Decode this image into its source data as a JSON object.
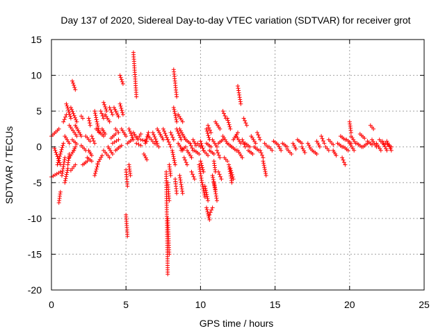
{
  "chart_data": {
    "type": "scatter",
    "title": "Day 137 of 2020, Sidereal Day-to-day VTEC variation (SDTVAR) for receiver grot",
    "xlabel": "GPS time / hours",
    "ylabel": "SDTVAR / TECUs",
    "xlim": [
      0,
      25
    ],
    "ylim": [
      -20,
      15
    ],
    "xticks": [
      0,
      5,
      10,
      15,
      20,
      25
    ],
    "yticks": [
      -20,
      -15,
      -10,
      -5,
      0,
      5,
      10,
      15
    ],
    "grid": true,
    "legend": "none",
    "marker": "+",
    "series_color": "#ff0000",
    "series": [
      {
        "name": "SDTVAR",
        "segments": [
          {
            "x0": 0.0,
            "y0": 1.5,
            "x1": 0.5,
            "y1": 2.5
          },
          {
            "x0": 0.0,
            "y0": -4.2,
            "x1": 0.6,
            "y1": -3.5
          },
          {
            "x0": 0.2,
            "y0": -0.2,
            "x1": 0.6,
            "y1": -2.5
          },
          {
            "x0": 0.4,
            "y0": -2.5,
            "x1": 0.8,
            "y1": 0.5
          },
          {
            "x0": 0.5,
            "y0": -7.8,
            "x1": 0.6,
            "y1": -6.3
          },
          {
            "x0": 0.7,
            "y0": -4.0,
            "x1": 0.9,
            "y1": -1.5
          },
          {
            "x0": 0.8,
            "y0": 3.5,
            "x1": 1.0,
            "y1": 4.5
          },
          {
            "x0": 0.9,
            "y0": 1.5,
            "x1": 1.2,
            "y1": 0.5
          },
          {
            "x0": 0.9,
            "y0": -5.0,
            "x1": 1.1,
            "y1": -3.0
          },
          {
            "x0": 1.0,
            "y0": 6.0,
            "x1": 1.3,
            "y1": 4.0
          },
          {
            "x0": 1.1,
            "y0": -2.5,
            "x1": 1.2,
            "y1": -1.0
          },
          {
            "x0": 1.2,
            "y0": 3.0,
            "x1": 1.7,
            "y1": 1.5
          },
          {
            "x0": 1.2,
            "y0": -1.5,
            "x1": 1.5,
            "y1": -0.5
          },
          {
            "x0": 1.3,
            "y0": -3.3,
            "x1": 1.6,
            "y1": -2.5
          },
          {
            "x0": 1.4,
            "y0": 9.2,
            "x1": 1.6,
            "y1": 8.0
          },
          {
            "x0": 1.3,
            "y0": 5.5,
            "x1": 1.7,
            "y1": 3.5
          },
          {
            "x0": 1.4,
            "y0": 1.0,
            "x1": 1.7,
            "y1": 0.4
          },
          {
            "x0": 1.5,
            "y0": -0.5,
            "x1": 1.6,
            "y1": 0.0
          },
          {
            "x0": 1.6,
            "y0": 3.0,
            "x1": 2.0,
            "y1": 1.5
          },
          {
            "x0": 2.0,
            "y0": 4.3,
            "x1": 2.1,
            "y1": 4.0
          },
          {
            "x0": 2.0,
            "y0": 0.2,
            "x1": 2.3,
            "y1": -0.5
          },
          {
            "x0": 2.1,
            "y0": -2.5,
            "x1": 2.4,
            "y1": -2.0
          },
          {
            "x0": 2.3,
            "y0": 1.5,
            "x1": 2.6,
            "y1": 0.8
          },
          {
            "x0": 2.5,
            "y0": 4.0,
            "x1": 2.6,
            "y1": 3.0
          },
          {
            "x0": 2.4,
            "y0": -1.5,
            "x1": 2.7,
            "y1": -2.0
          },
          {
            "x0": 2.5,
            "y0": -0.5,
            "x1": 2.7,
            "y1": -1.2
          },
          {
            "x0": 2.7,
            "y0": 1.5,
            "x1": 2.9,
            "y1": 0.5
          },
          {
            "x0": 2.9,
            "y0": 5.0,
            "x1": 3.2,
            "y1": 2.0
          },
          {
            "x0": 2.9,
            "y0": -4.0,
            "x1": 3.1,
            "y1": -2.5
          },
          {
            "x0": 3.0,
            "y0": 2.5,
            "x1": 3.5,
            "y1": 1.5
          },
          {
            "x0": 3.1,
            "y0": -2.3,
            "x1": 3.4,
            "y1": -1.2
          },
          {
            "x0": 3.3,
            "y0": 5.0,
            "x1": 3.5,
            "y1": 4.0
          },
          {
            "x0": 3.4,
            "y0": 2.5,
            "x1": 3.6,
            "y1": 1.8
          },
          {
            "x0": 3.5,
            "y0": 6.2,
            "x1": 3.7,
            "y1": 5.0
          },
          {
            "x0": 3.5,
            "y0": -0.5,
            "x1": 3.9,
            "y1": -1.5
          },
          {
            "x0": 3.6,
            "y0": 4.5,
            "x1": 3.9,
            "y1": 3.5
          },
          {
            "x0": 3.8,
            "y0": 0.0,
            "x1": 4.1,
            "y1": -1.0
          },
          {
            "x0": 3.9,
            "y0": 5.5,
            "x1": 4.1,
            "y1": 4.5
          },
          {
            "x0": 4.0,
            "y0": 1.2,
            "x1": 4.3,
            "y1": 1.8
          },
          {
            "x0": 4.1,
            "y0": 0.5,
            "x1": 4.5,
            "y1": 1.0
          },
          {
            "x0": 4.2,
            "y0": 5.5,
            "x1": 4.5,
            "y1": 4.2
          },
          {
            "x0": 4.3,
            "y0": 2.5,
            "x1": 4.5,
            "y1": 2.0
          },
          {
            "x0": 4.3,
            "y0": -0.5,
            "x1": 4.7,
            "y1": 0.2
          },
          {
            "x0": 4.6,
            "y0": 10.0,
            "x1": 4.8,
            "y1": 8.8
          },
          {
            "x0": 4.6,
            "y0": 6.0,
            "x1": 4.8,
            "y1": 4.5
          },
          {
            "x0": 4.7,
            "y0": 2.5,
            "x1": 5.0,
            "y1": 1.5
          },
          {
            "x0": 5.0,
            "y0": -3.2,
            "x1": 5.1,
            "y1": -5.5
          },
          {
            "x0": 5.0,
            "y0": -9.5,
            "x1": 5.1,
            "y1": -12.5
          },
          {
            "x0": 5.2,
            "y0": 2.5,
            "x1": 5.5,
            "y1": 1.0
          },
          {
            "x0": 5.1,
            "y0": 0.5,
            "x1": 5.4,
            "y1": 1.0
          },
          {
            "x0": 5.2,
            "y0": -2.5,
            "x1": 5.3,
            "y1": -4.0
          },
          {
            "x0": 5.5,
            "y0": 13.2,
            "x1": 5.7,
            "y1": 7.0
          },
          {
            "x0": 5.5,
            "y0": 2.0,
            "x1": 5.8,
            "y1": 1.0
          },
          {
            "x0": 5.7,
            "y0": 0.5,
            "x1": 6.0,
            "y1": 0.2
          },
          {
            "x0": 5.8,
            "y0": 1.2,
            "x1": 6.0,
            "y1": 1.8
          },
          {
            "x0": 6.0,
            "y0": 1.0,
            "x1": 6.4,
            "y1": 0.8
          },
          {
            "x0": 6.2,
            "y0": -1.0,
            "x1": 6.4,
            "y1": -1.8
          },
          {
            "x0": 6.3,
            "y0": 0.5,
            "x1": 6.5,
            "y1": 2.0
          },
          {
            "x0": 6.5,
            "y0": 1.5,
            "x1": 6.9,
            "y1": 0.5
          },
          {
            "x0": 6.8,
            "y0": 2.0,
            "x1": 7.1,
            "y1": 0.5
          },
          {
            "x0": 7.0,
            "y0": 0.5,
            "x1": 7.2,
            "y1": 0.0
          },
          {
            "x0": 7.1,
            "y0": 2.5,
            "x1": 7.5,
            "y1": 1.0
          },
          {
            "x0": 7.5,
            "y0": 2.5,
            "x1": 7.8,
            "y1": 1.0
          },
          {
            "x0": 7.7,
            "y0": -3.5,
            "x1": 7.8,
            "y1": -17.8
          },
          {
            "x0": 7.8,
            "y0": -10.0,
            "x1": 7.9,
            "y1": -15.0
          },
          {
            "x0": 7.8,
            "y0": -5.0,
            "x1": 7.9,
            "y1": -7.5
          },
          {
            "x0": 7.9,
            "y0": -2.5,
            "x1": 8.0,
            "y1": -4.0
          },
          {
            "x0": 7.8,
            "y0": 1.0,
            "x1": 8.0,
            "y1": 0.0
          },
          {
            "x0": 8.0,
            "y0": 2.0,
            "x1": 8.2,
            "y1": 1.0
          },
          {
            "x0": 8.1,
            "y0": -0.5,
            "x1": 8.3,
            "y1": -2.5
          },
          {
            "x0": 8.2,
            "y0": 10.8,
            "x1": 8.4,
            "y1": 7.0
          },
          {
            "x0": 8.2,
            "y0": 5.5,
            "x1": 8.4,
            "y1": 3.5
          },
          {
            "x0": 8.3,
            "y0": -4.5,
            "x1": 8.4,
            "y1": -6.5
          },
          {
            "x0": 8.4,
            "y0": 2.5,
            "x1": 8.7,
            "y1": 1.0
          },
          {
            "x0": 8.5,
            "y0": 4.5,
            "x1": 8.8,
            "y1": 3.5
          },
          {
            "x0": 8.5,
            "y0": 0.5,
            "x1": 8.8,
            "y1": -0.5
          },
          {
            "x0": 8.6,
            "y0": 2.5,
            "x1": 9.0,
            "y1": 1.0
          },
          {
            "x0": 8.6,
            "y0": -4.0,
            "x1": 8.8,
            "y1": -6.5
          },
          {
            "x0": 8.7,
            "y0": -0.5,
            "x1": 9.0,
            "y1": 0.0
          },
          {
            "x0": 8.9,
            "y0": -1.5,
            "x1": 9.1,
            "y1": -2.5
          },
          {
            "x0": 9.0,
            "y0": 1.0,
            "x1": 9.3,
            "y1": 0.5
          },
          {
            "x0": 9.1,
            "y0": -0.5,
            "x1": 9.4,
            "y1": -1.5
          },
          {
            "x0": 9.3,
            "y0": 0.5,
            "x1": 9.5,
            "y1": -0.5
          },
          {
            "x0": 9.4,
            "y0": -3.5,
            "x1": 9.6,
            "y1": -4.5
          },
          {
            "x0": 9.5,
            "y0": 1.0,
            "x1": 9.7,
            "y1": 0.2
          },
          {
            "x0": 9.6,
            "y0": -0.5,
            "x1": 9.9,
            "y1": -1.0
          },
          {
            "x0": 9.8,
            "y0": 0.5,
            "x1": 10.0,
            "y1": 0.0
          },
          {
            "x0": 9.9,
            "y0": -2.5,
            "x1": 10.1,
            "y1": -5.0
          },
          {
            "x0": 10.0,
            "y0": -2.0,
            "x1": 10.2,
            "y1": -3.5
          },
          {
            "x0": 10.0,
            "y0": 0.8,
            "x1": 10.2,
            "y1": -0.5
          },
          {
            "x0": 10.1,
            "y0": -5.0,
            "x1": 10.3,
            "y1": -7.0
          },
          {
            "x0": 10.2,
            "y0": -0.5,
            "x1": 10.5,
            "y1": -1.2
          },
          {
            "x0": 10.3,
            "y0": -5.5,
            "x1": 10.5,
            "y1": -7.5
          },
          {
            "x0": 10.4,
            "y0": 2.5,
            "x1": 10.6,
            "y1": 1.0
          },
          {
            "x0": 10.4,
            "y0": -8.5,
            "x1": 10.6,
            "y1": -10.2
          },
          {
            "x0": 10.4,
            "y0": 0.5,
            "x1": 10.7,
            "y1": 0.0
          },
          {
            "x0": 10.5,
            "y0": 3.0,
            "x1": 10.7,
            "y1": 2.0
          },
          {
            "x0": 10.6,
            "y0": -0.5,
            "x1": 10.9,
            "y1": -1.0
          },
          {
            "x0": 10.6,
            "y0": -9.5,
            "x1": 10.8,
            "y1": -8.5
          },
          {
            "x0": 10.8,
            "y0": 1.0,
            "x1": 11.1,
            "y1": 0.0
          },
          {
            "x0": 10.9,
            "y0": -2.0,
            "x1": 11.0,
            "y1": -3.5
          },
          {
            "x0": 10.8,
            "y0": -4.0,
            "x1": 11.0,
            "y1": -6.0
          },
          {
            "x0": 10.9,
            "y0": -5.0,
            "x1": 11.1,
            "y1": -7.5
          },
          {
            "x0": 11.0,
            "y0": 3.5,
            "x1": 11.3,
            "y1": 2.5
          },
          {
            "x0": 11.1,
            "y0": -0.5,
            "x1": 11.3,
            "y1": -1.5
          },
          {
            "x0": 11.2,
            "y0": -3.5,
            "x1": 11.4,
            "y1": -4.5
          },
          {
            "x0": 11.2,
            "y0": 0.5,
            "x1": 11.5,
            "y1": 1.0
          },
          {
            "x0": 11.5,
            "y0": 5.0,
            "x1": 11.7,
            "y1": 4.0
          },
          {
            "x0": 11.5,
            "y0": 1.5,
            "x1": 11.8,
            "y1": 0.5
          },
          {
            "x0": 11.6,
            "y0": -1.5,
            "x1": 11.8,
            "y1": -2.0
          },
          {
            "x0": 11.8,
            "y0": 4.0,
            "x1": 12.0,
            "y1": 2.5
          },
          {
            "x0": 11.8,
            "y0": 0.5,
            "x1": 12.1,
            "y1": 0.0
          },
          {
            "x0": 11.9,
            "y0": -2.5,
            "x1": 12.1,
            "y1": -5.0
          },
          {
            "x0": 12.0,
            "y0": -3.0,
            "x1": 12.2,
            "y1": -4.5
          },
          {
            "x0": 12.1,
            "y0": 0.0,
            "x1": 12.4,
            "y1": -0.5
          },
          {
            "x0": 12.2,
            "y0": 1.0,
            "x1": 12.5,
            "y1": 2.0
          },
          {
            "x0": 12.5,
            "y0": 8.5,
            "x1": 12.7,
            "y1": 6.0
          },
          {
            "x0": 12.4,
            "y0": 1.5,
            "x1": 12.7,
            "y1": 0.5
          },
          {
            "x0": 12.5,
            "y0": -0.5,
            "x1": 12.8,
            "y1": -1.5
          },
          {
            "x0": 12.8,
            "y0": 1.0,
            "x1": 13.0,
            "y1": 0.0
          },
          {
            "x0": 12.9,
            "y0": 4.0,
            "x1": 13.1,
            "y1": 3.0
          },
          {
            "x0": 13.0,
            "y0": 0.5,
            "x1": 13.3,
            "y1": 0.0
          },
          {
            "x0": 13.2,
            "y0": -0.5,
            "x1": 13.5,
            "y1": -1.0
          },
          {
            "x0": 13.4,
            "y0": 1.5,
            "x1": 13.7,
            "y1": 0.5
          },
          {
            "x0": 13.6,
            "y0": 0.0,
            "x1": 13.9,
            "y1": -0.5
          },
          {
            "x0": 13.8,
            "y0": 2.0,
            "x1": 14.0,
            "y1": 1.0
          },
          {
            "x0": 14.0,
            "y0": -0.5,
            "x1": 14.2,
            "y1": -1.5
          },
          {
            "x0": 14.2,
            "y0": -2.0,
            "x1": 14.4,
            "y1": -4.0
          },
          {
            "x0": 14.3,
            "y0": 0.5,
            "x1": 14.5,
            "y1": 0.0
          },
          {
            "x0": 14.6,
            "y0": 0.0,
            "x1": 14.8,
            "y1": -0.5
          },
          {
            "x0": 14.9,
            "y0": 0.8,
            "x1": 15.1,
            "y1": 0.5
          },
          {
            "x0": 15.2,
            "y0": 0.3,
            "x1": 15.4,
            "y1": -0.5
          },
          {
            "x0": 15.5,
            "y0": 0.5,
            "x1": 15.8,
            "y1": 0.0
          },
          {
            "x0": 15.8,
            "y0": -0.3,
            "x1": 16.1,
            "y1": -1.0
          },
          {
            "x0": 16.2,
            "y0": 0.5,
            "x1": 16.4,
            "y1": -0.3
          },
          {
            "x0": 16.5,
            "y0": 1.0,
            "x1": 16.8,
            "y1": 0.5
          },
          {
            "x0": 16.8,
            "y0": 0.0,
            "x1": 17.0,
            "y1": -0.8
          },
          {
            "x0": 17.2,
            "y0": 0.5,
            "x1": 17.4,
            "y1": -0.3
          },
          {
            "x0": 17.5,
            "y0": -0.5,
            "x1": 17.8,
            "y1": -1.0
          },
          {
            "x0": 17.8,
            "y0": 0.8,
            "x1": 18.0,
            "y1": 0.0
          },
          {
            "x0": 18.1,
            "y0": 1.5,
            "x1": 18.3,
            "y1": 0.5
          },
          {
            "x0": 18.4,
            "y0": 0.0,
            "x1": 18.6,
            "y1": -0.5
          },
          {
            "x0": 18.6,
            "y0": 1.0,
            "x1": 18.9,
            "y1": 0.3
          },
          {
            "x0": 18.9,
            "y0": -0.5,
            "x1": 19.1,
            "y1": -1.2
          },
          {
            "x0": 19.2,
            "y0": 0.5,
            "x1": 19.5,
            "y1": 0.0
          },
          {
            "x0": 19.4,
            "y0": 1.5,
            "x1": 19.7,
            "y1": 1.0
          },
          {
            "x0": 19.5,
            "y0": -1.5,
            "x1": 19.7,
            "y1": -2.5
          },
          {
            "x0": 19.6,
            "y0": 0.0,
            "x1": 19.9,
            "y1": -0.5
          },
          {
            "x0": 19.8,
            "y0": 1.0,
            "x1": 20.1,
            "y1": 0.5
          },
          {
            "x0": 20.0,
            "y0": 3.5,
            "x1": 20.1,
            "y1": 2.0
          },
          {
            "x0": 20.0,
            "y0": 0.5,
            "x1": 20.3,
            "y1": -0.5
          },
          {
            "x0": 20.1,
            "y0": 1.5,
            "x1": 20.4,
            "y1": 0.5
          },
          {
            "x0": 20.5,
            "y0": 0.5,
            "x1": 20.8,
            "y1": 0.0
          },
          {
            "x0": 20.7,
            "y0": 1.8,
            "x1": 21.0,
            "y1": 1.2
          },
          {
            "x0": 20.9,
            "y0": 0.0,
            "x1": 21.2,
            "y1": 0.5
          },
          {
            "x0": 21.2,
            "y0": 0.8,
            "x1": 21.5,
            "y1": 0.3
          },
          {
            "x0": 21.4,
            "y0": 3.0,
            "x1": 21.6,
            "y1": 2.5
          },
          {
            "x0": 21.5,
            "y0": 1.0,
            "x1": 21.8,
            "y1": 0.0
          },
          {
            "x0": 21.8,
            "y0": 0.5,
            "x1": 22.1,
            "y1": -0.5
          },
          {
            "x0": 22.0,
            "y0": 1.0,
            "x1": 22.3,
            "y1": 0.3
          },
          {
            "x0": 22.2,
            "y0": 0.8,
            "x1": 22.5,
            "y1": -0.5
          },
          {
            "x0": 22.4,
            "y0": 0.5,
            "x1": 22.8,
            "y1": 0.0
          },
          {
            "x0": 22.5,
            "y0": 0.8,
            "x1": 22.8,
            "y1": -0.5
          }
        ]
      }
    ]
  }
}
